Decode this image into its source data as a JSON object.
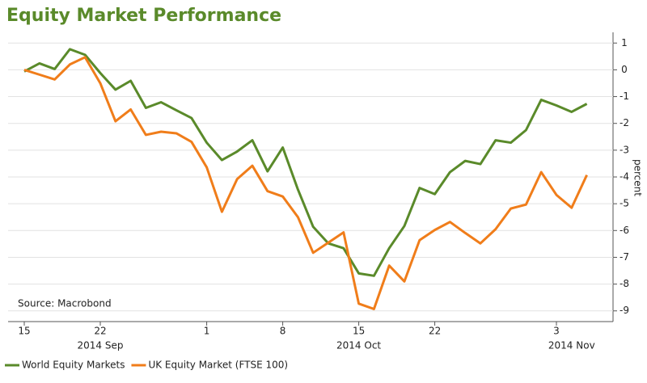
{
  "chart_data": {
    "type": "line",
    "title": "Equity Market Performance",
    "y_axis_label": "percent",
    "annotation": "Source: Macrobond",
    "categories": [
      "15",
      null,
      null,
      null,
      null,
      "22",
      null,
      null,
      null,
      null,
      null,
      null,
      "1",
      null,
      null,
      null,
      null,
      "8",
      null,
      null,
      null,
      null,
      "15",
      null,
      null,
      null,
      null,
      "22",
      null,
      null,
      null,
      null,
      null,
      null,
      null,
      "3",
      null,
      null
    ],
    "x_group_labels": [
      "2014 Sep",
      "2014 Oct",
      "2014 Nov"
    ],
    "series": [
      {
        "name": "World Equity Markets",
        "color": "#5a8a2a",
        "values": [
          -0.06,
          0.24,
          0.03,
          0.77,
          0.56,
          -0.12,
          -0.74,
          -0.41,
          -1.42,
          -1.21,
          -1.51,
          -1.8,
          -2.72,
          -3.37,
          -3.05,
          -2.63,
          -3.79,
          -2.9,
          -4.47,
          -5.86,
          -6.48,
          -6.66,
          -7.6,
          -7.69,
          -6.66,
          -5.83,
          -4.41,
          -4.64,
          -3.82,
          -3.4,
          -3.52,
          -2.63,
          -2.72,
          -2.25,
          -1.12,
          -1.33,
          -1.57,
          -1.27
        ]
      },
      {
        "name": "UK Equity Market (FTSE 100)",
        "color": "#f07d1a",
        "values": [
          0,
          -0.18,
          -0.36,
          0.2,
          0.47,
          -0.5,
          -1.92,
          -1.48,
          -2.43,
          -2.31,
          -2.37,
          -2.69,
          -3.64,
          -5.3,
          -4.08,
          -3.58,
          -4.53,
          -4.73,
          -5.5,
          -6.83,
          -6.45,
          -6.07,
          -8.73,
          -8.93,
          -7.31,
          -7.9,
          -6.36,
          -5.98,
          -5.68,
          -6.09,
          -6.48,
          -5.95,
          -5.18,
          -5.03,
          -3.82,
          -4.67,
          -5.15,
          -3.93
        ]
      }
    ],
    "ylim": [
      -9.4,
      1.4
    ],
    "yticks": [
      1,
      0,
      -1,
      -2,
      -3,
      -4,
      -5,
      -6,
      -7,
      -8,
      -9
    ],
    "y_axis_side": "right",
    "grid": true,
    "legend": "bottom"
  }
}
